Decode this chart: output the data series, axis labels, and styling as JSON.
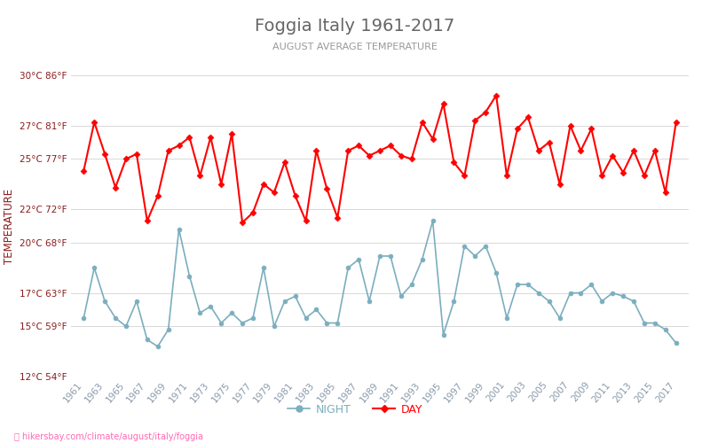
{
  "title": "Foggia Italy 1961-2017",
  "subtitle": "AUGUST AVERAGE TEMPERATURE",
  "ylabel": "TEMPERATURE",
  "watermark": "hikersbay.com/climate/august/italy/foggia",
  "ylim": [
    12,
    30
  ],
  "yticks_c": [
    12,
    15,
    17,
    20,
    22,
    25,
    27,
    30
  ],
  "yticks_f": [
    54,
    59,
    63,
    68,
    72,
    77,
    81,
    86
  ],
  "years": [
    1961,
    1962,
    1963,
    1964,
    1965,
    1966,
    1967,
    1968,
    1969,
    1970,
    1971,
    1972,
    1973,
    1974,
    1975,
    1976,
    1977,
    1978,
    1979,
    1980,
    1981,
    1982,
    1983,
    1984,
    1985,
    1986,
    1987,
    1988,
    1989,
    1990,
    1991,
    1992,
    1993,
    1994,
    1995,
    1996,
    1997,
    1998,
    1999,
    2000,
    2001,
    2002,
    2003,
    2004,
    2005,
    2006,
    2007,
    2008,
    2009,
    2010,
    2011,
    2012,
    2013,
    2014,
    2015,
    2016,
    2017
  ],
  "day_temps": [
    24.3,
    27.2,
    25.3,
    23.3,
    25.0,
    25.3,
    21.3,
    22.8,
    25.5,
    25.8,
    26.3,
    24.0,
    26.3,
    23.5,
    26.5,
    21.2,
    21.8,
    23.5,
    23.0,
    24.8,
    22.8,
    21.3,
    25.5,
    23.2,
    21.5,
    25.5,
    25.8,
    25.2,
    25.5,
    25.8,
    25.2,
    25.0,
    27.2,
    26.2,
    28.3,
    24.8,
    24.0,
    27.3,
    27.8,
    28.8,
    24.0,
    26.8,
    27.5,
    25.5,
    26.0,
    23.5,
    27.0,
    25.5,
    26.8,
    24.0,
    25.2,
    24.2,
    25.5,
    24.0,
    25.5,
    23.0,
    27.2
  ],
  "night_temps": [
    15.5,
    18.5,
    16.5,
    15.5,
    15.0,
    16.5,
    14.2,
    13.8,
    14.8,
    20.8,
    18.0,
    15.8,
    16.2,
    15.2,
    15.8,
    15.2,
    15.5,
    18.5,
    15.0,
    16.5,
    16.8,
    15.5,
    16.0,
    15.2,
    15.2,
    18.5,
    19.0,
    16.5,
    19.2,
    19.2,
    16.8,
    17.5,
    19.0,
    21.3,
    14.5,
    16.5,
    19.8,
    19.2,
    19.8,
    18.2,
    15.5,
    17.5,
    17.5,
    17.0,
    16.5,
    15.5,
    17.0,
    17.0,
    17.5,
    16.5,
    17.0,
    16.8,
    16.5,
    15.2,
    15.2,
    14.8,
    14.0
  ],
  "line_color_day": "#ff0000",
  "line_color_night": "#7baebe",
  "bg_color": "#ffffff",
  "grid_color": "#d8d8d8",
  "title_color": "#666666",
  "subtitle_color": "#999999",
  "ylabel_color": "#8b1a1a",
  "ytick_label_color": "#8b1a1a",
  "xtick_label_color": "#8899aa",
  "watermark_color": "#ff69b4"
}
